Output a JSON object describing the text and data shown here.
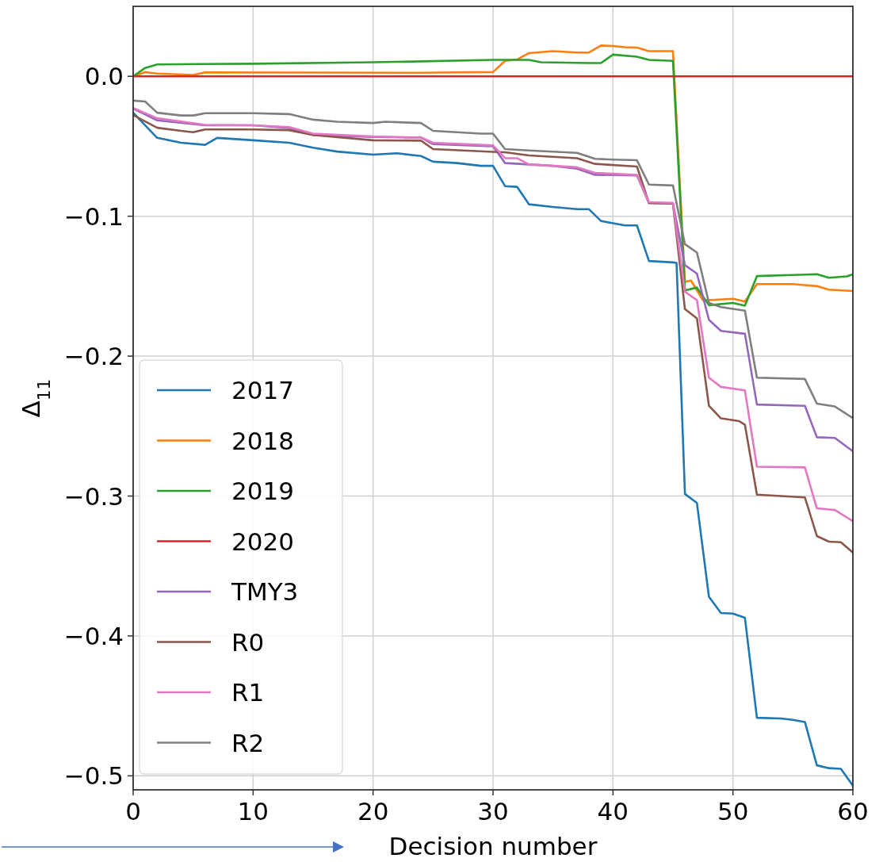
{
  "chart_data": {
    "type": "line",
    "xlabel": "Decision number",
    "ylabel": "Δ$_{11}$",
    "xlim": [
      0,
      60
    ],
    "ylim": [
      -0.51,
      0.05
    ],
    "xticks": [
      0,
      10,
      20,
      30,
      40,
      50,
      60
    ],
    "yticks": [
      {
        "value": 0,
        "label": "0.0"
      },
      {
        "value": -0.1,
        "label": "−0.1"
      },
      {
        "value": -0.2,
        "label": "−0.2"
      },
      {
        "value": -0.3,
        "label": "−0.3"
      },
      {
        "value": -0.4,
        "label": "−0.4"
      },
      {
        "value": -0.5,
        "label": "−0.5"
      }
    ],
    "grid": true,
    "legend": "bottom left",
    "line_style": "solid",
    "series": [
      {
        "name": "2017",
        "color": "#1f77b4",
        "x": [
          0,
          2,
          4,
          6,
          7,
          10,
          13,
          15,
          17,
          20,
          22,
          24,
          25,
          27,
          29,
          30,
          31,
          32,
          33,
          35,
          37,
          38,
          39,
          40,
          41,
          42,
          43,
          45,
          45.3,
          46,
          47,
          48,
          49,
          50,
          51,
          52,
          54,
          55,
          56,
          57,
          58,
          59,
          60
        ],
        "values": [
          -0.026,
          -0.044,
          -0.0475,
          -0.049,
          -0.044,
          -0.0457,
          -0.0475,
          -0.051,
          -0.0538,
          -0.056,
          -0.055,
          -0.057,
          -0.061,
          -0.062,
          -0.064,
          -0.064,
          -0.0785,
          -0.079,
          -0.0915,
          -0.0934,
          -0.095,
          -0.095,
          -0.1034,
          -0.105,
          -0.1066,
          -0.1066,
          -0.132,
          -0.133,
          -0.1334,
          -0.2985,
          -0.305,
          -0.372,
          -0.3836,
          -0.384,
          -0.387,
          -0.4585,
          -0.459,
          -0.46,
          -0.4615,
          -0.4925,
          -0.4945,
          -0.495,
          -0.507
        ]
      },
      {
        "name": "2018",
        "color": "#ff7f0e",
        "x": [
          0,
          1,
          2,
          5,
          6,
          24,
          30,
          31,
          32,
          33,
          35,
          37,
          38,
          39,
          40,
          41,
          42,
          43,
          45,
          46,
          46.5,
          47.5,
          48,
          50,
          51,
          52,
          55,
          57,
          58,
          60
        ],
        "values": [
          0,
          0.003,
          0.002,
          0.001,
          0.0028,
          0.0025,
          0.003,
          0.011,
          0.012,
          0.0166,
          0.018,
          0.017,
          0.017,
          0.022,
          0.0217,
          0.0208,
          0.0205,
          0.018,
          0.018,
          -0.147,
          -0.146,
          -0.16,
          -0.16,
          -0.159,
          -0.161,
          -0.1485,
          -0.1485,
          -0.15,
          -0.1525,
          -0.1535
        ]
      },
      {
        "name": "2019",
        "color": "#2ca02c",
        "x": [
          0,
          1,
          2,
          10,
          20,
          30,
          33,
          34,
          38,
          39,
          40,
          42,
          43,
          45,
          46,
          47,
          48,
          50,
          51,
          52,
          55,
          57,
          58,
          59.5,
          60
        ],
        "values": [
          0,
          0.006,
          0.0085,
          0.009,
          0.01,
          0.0117,
          0.0117,
          0.01,
          0.0095,
          0.0095,
          0.0155,
          0.014,
          0.0117,
          0.011,
          -0.153,
          -0.151,
          -0.1636,
          -0.162,
          -0.164,
          -0.1428,
          -0.142,
          -0.1415,
          -0.144,
          -0.143,
          -0.1415
        ]
      },
      {
        "name": "2020",
        "color": "#d62728",
        "x": [
          0,
          60
        ],
        "values": [
          0,
          0
        ]
      },
      {
        "name": "TMY3",
        "color": "#9467bd",
        "x": [
          0,
          2,
          6,
          10,
          13,
          15,
          20,
          24,
          25,
          30,
          31,
          35,
          37,
          38.5,
          42,
          43,
          45,
          46,
          47,
          48,
          49,
          51,
          52,
          56,
          57,
          58.5,
          60
        ],
        "values": [
          -0.023,
          -0.0315,
          -0.035,
          -0.035,
          -0.037,
          -0.042,
          -0.0434,
          -0.0438,
          -0.0485,
          -0.05,
          -0.062,
          -0.064,
          -0.066,
          -0.0704,
          -0.0708,
          -0.0906,
          -0.091,
          -0.135,
          -0.141,
          -0.174,
          -0.182,
          -0.184,
          -0.2346,
          -0.2355,
          -0.258,
          -0.2585,
          -0.268
        ]
      },
      {
        "name": "R0",
        "color": "#8c564b",
        "x": [
          0,
          2,
          4,
          5,
          6,
          10,
          13,
          15,
          20,
          24,
          25,
          30,
          31,
          33,
          37,
          38.5,
          42,
          43,
          45,
          46,
          47,
          48,
          49,
          50.5,
          51,
          52,
          56,
          57,
          58,
          59,
          60
        ],
        "values": [
          -0.0277,
          -0.0368,
          -0.039,
          -0.04,
          -0.038,
          -0.038,
          -0.0385,
          -0.042,
          -0.0457,
          -0.046,
          -0.052,
          -0.054,
          -0.0543,
          -0.0566,
          -0.0585,
          -0.0626,
          -0.0645,
          -0.0906,
          -0.091,
          -0.1664,
          -0.173,
          -0.2355,
          -0.2445,
          -0.2464,
          -0.249,
          -0.299,
          -0.301,
          -0.3286,
          -0.3326,
          -0.333,
          -0.3404
        ]
      },
      {
        "name": "R1",
        "color": "#e377c2",
        "x": [
          0,
          2,
          6,
          10,
          13,
          15,
          20,
          24,
          25,
          30,
          31,
          32,
          33,
          37,
          38.5,
          42,
          43,
          45,
          46,
          47,
          48,
          49,
          51,
          52,
          56,
          57,
          58.5,
          60
        ],
        "values": [
          -0.0226,
          -0.03,
          -0.0347,
          -0.035,
          -0.0363,
          -0.041,
          -0.043,
          -0.0438,
          -0.0475,
          -0.0494,
          -0.0585,
          -0.0585,
          -0.063,
          -0.065,
          -0.069,
          -0.0705,
          -0.09,
          -0.0905,
          -0.154,
          -0.16,
          -0.2154,
          -0.222,
          -0.2245,
          -0.279,
          -0.2795,
          -0.3088,
          -0.31,
          -0.318
        ]
      },
      {
        "name": "R2",
        "color": "#7f7f7f",
        "x": [
          0,
          1,
          2,
          4,
          5,
          6,
          10,
          13,
          15,
          17,
          20,
          21,
          24,
          25,
          29,
          30,
          31,
          33,
          37,
          38.5,
          40,
          42,
          43,
          45,
          46,
          47,
          48,
          49,
          51,
          52,
          56,
          57,
          58.5,
          60
        ],
        "values": [
          -0.0174,
          -0.018,
          -0.026,
          -0.028,
          -0.028,
          -0.0264,
          -0.0264,
          -0.027,
          -0.031,
          -0.0325,
          -0.0334,
          -0.0325,
          -0.0334,
          -0.039,
          -0.041,
          -0.041,
          -0.052,
          -0.053,
          -0.0547,
          -0.059,
          -0.0595,
          -0.06,
          -0.0774,
          -0.078,
          -0.12,
          -0.126,
          -0.162,
          -0.165,
          -0.1675,
          -0.2154,
          -0.2163,
          -0.234,
          -0.236,
          -0.2443
        ]
      }
    ]
  }
}
